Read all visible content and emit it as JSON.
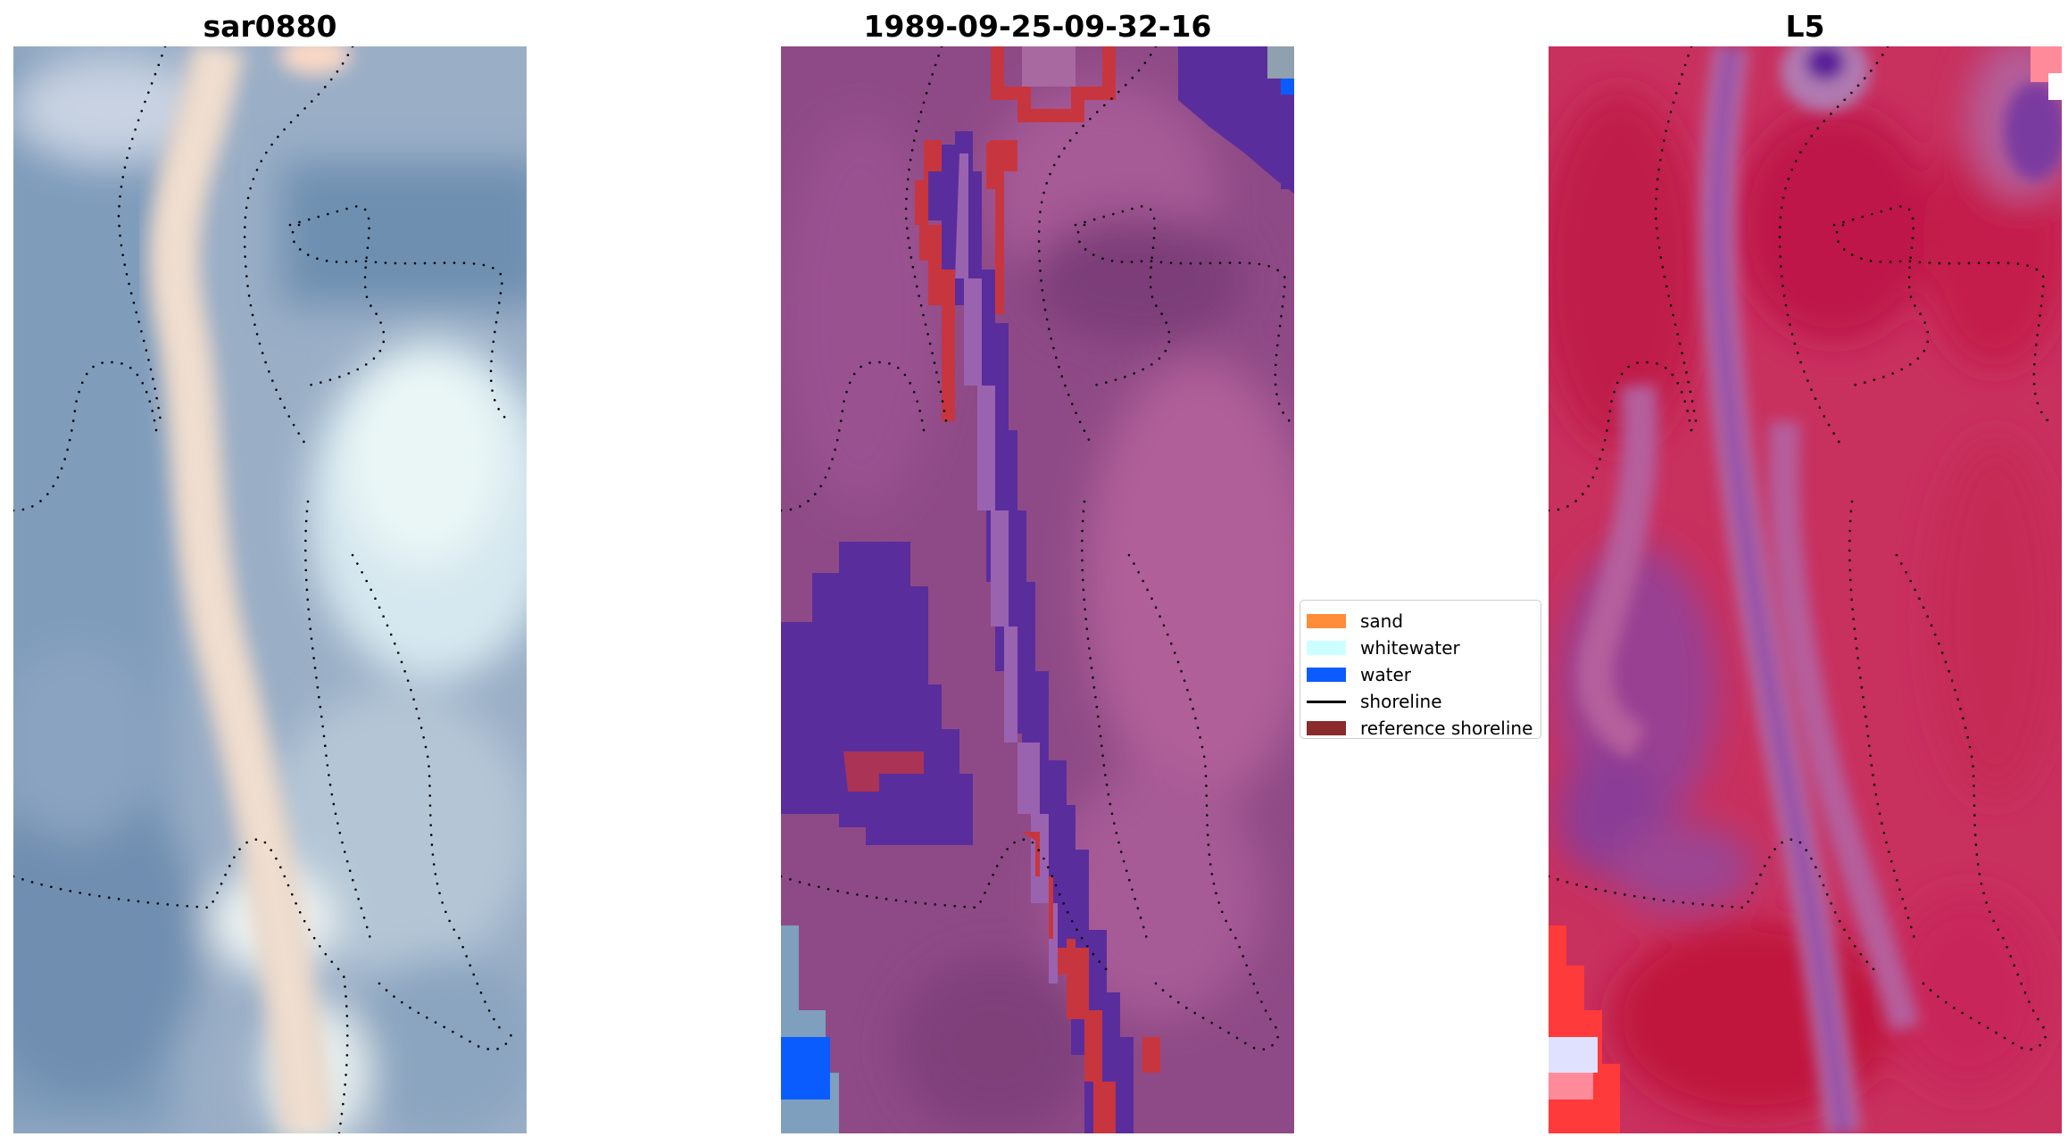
{
  "panels": [
    {
      "title": "sar0880"
    },
    {
      "title": "1989-09-25-09-32-16"
    },
    {
      "title": "L5"
    }
  ],
  "legend": {
    "items": [
      {
        "label": "sand",
        "color": "#ff8c3a",
        "kind": "patch"
      },
      {
        "label": "whitewater",
        "color": "#ccffff",
        "kind": "patch"
      },
      {
        "label": "water",
        "color": "#0a5cff",
        "kind": "patch"
      },
      {
        "label": "shoreline",
        "color": "#000000",
        "kind": "line"
      },
      {
        "label": "reference shoreline",
        "color": "#8b2a2a",
        "kind": "patch"
      }
    ]
  }
}
